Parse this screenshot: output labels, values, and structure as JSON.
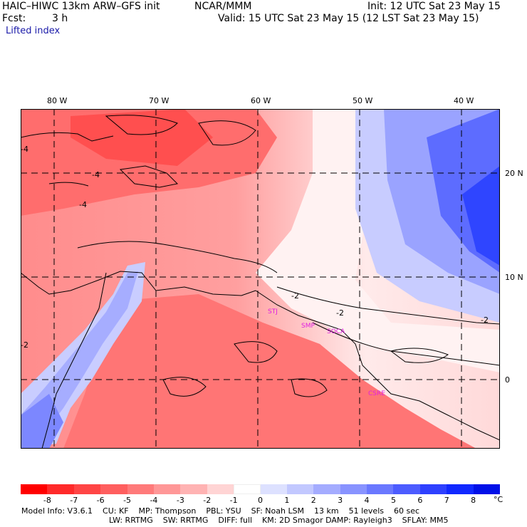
{
  "header": {
    "title_left": "HAIC–HIWC 13km ARW–GFS init",
    "org": "NCAR/MMM",
    "init": "Init: 12 UTC Sat 23 May 15",
    "fcst_label": "Fcst:",
    "fcst_value": "3 h",
    "valid": "Valid: 15 UTC Sat 23 May 15 (12 LST Sat 23 May 15)",
    "field": "Lifted index"
  },
  "map": {
    "lon_labels": [
      "80 W",
      "70 W",
      "60 W",
      "50 W",
      "40 W"
    ],
    "lat_labels": [
      "20 N",
      "10 N",
      "0"
    ],
    "contour_labels": [
      "-4",
      "-4",
      "-4",
      "-2",
      "-2",
      "-2",
      "-2"
    ],
    "stations": [
      "STJ",
      "SMP",
      "SOCA",
      "CSRE"
    ],
    "colors": {
      "station": "#e020e0",
      "contour": "#000000",
      "grid": "#000000"
    }
  },
  "legend": {
    "ticks": [
      "-8",
      "-7",
      "-6",
      "-5",
      "-4",
      "-3",
      "-2",
      "-1",
      "0",
      "1",
      "2",
      "3",
      "4",
      "5",
      "6",
      "7",
      "8"
    ],
    "unit": "°C",
    "colors": [
      "#ff0000",
      "#ff2a2a",
      "#ff4545",
      "#ff5f5f",
      "#ff7a7a",
      "#ff9797",
      "#ffb3b3",
      "#ffd4d4",
      "#ffffff",
      "#dde1ff",
      "#c2c8ff",
      "#a4acff",
      "#8893ff",
      "#6a78ff",
      "#4c5cff",
      "#2e40ff",
      "#1028ff",
      "#0010e8"
    ]
  },
  "footer": {
    "line1": "Model Info: V3.6.1    CU: KF    MP: Thompson    PBL: YSU    SF: Noah LSM    13 km    51 levels    60 sec",
    "line2": "LW: RRTMG    SW: RRTMG    DIFF: full    KM: 2D Smagor DAMP: Rayleigh3    SFLAY: MM5"
  }
}
